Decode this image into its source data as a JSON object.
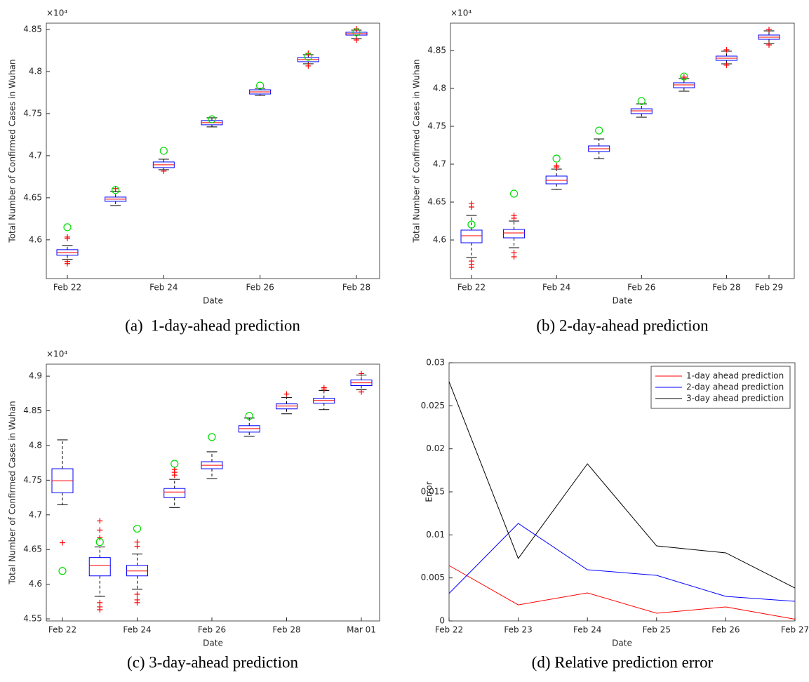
{
  "chart_data": [
    {
      "type": "box",
      "caption": "(a)  1-day-ahead prediction",
      "xlabel": "Date",
      "ylabel": "Total Number of Confirmed Cases in Wuhan",
      "y_multiplier": "×10⁴",
      "categories": [
        "Feb 22",
        null,
        "Feb 24",
        null,
        "Feb 26",
        null,
        "Feb 28"
      ],
      "boxes": [
        {
          "whislo": 4.5767,
          "q1": 4.5817,
          "med": 4.585,
          "q3": 4.5883,
          "whishi": 4.5933,
          "fliers": [
            4.6017,
            4.6033,
            4.5742,
            4.5717
          ]
        },
        {
          "whislo": 4.6408,
          "q1": 4.6458,
          "med": 4.6483,
          "q3": 4.6508,
          "whishi": 4.6575,
          "fliers": [
            4.6608
          ]
        },
        {
          "whislo": 4.6833,
          "q1": 4.6858,
          "med": 4.6892,
          "q3": 4.6925,
          "whishi": 4.6958,
          "fliers": [
            4.6817
          ]
        },
        {
          "whislo": 4.7342,
          "q1": 4.7367,
          "med": 4.7392,
          "q3": 4.7417,
          "whishi": 4.745,
          "fliers": []
        },
        {
          "whislo": 4.7717,
          "q1": 4.7733,
          "med": 4.7758,
          "q3": 4.7783,
          "whishi": 4.78,
          "fliers": []
        },
        {
          "whislo": 4.8092,
          "q1": 4.8117,
          "med": 4.8142,
          "q3": 4.8167,
          "whishi": 4.82,
          "fliers": [
            4.8217,
            4.8067
          ]
        },
        {
          "whislo": 4.8392,
          "q1": 4.8433,
          "med": 4.845,
          "q3": 4.8467,
          "whishi": 4.8492,
          "fliers": [
            4.8508,
            4.8375
          ]
        }
      ],
      "actual": [
        4.615,
        4.6592,
        4.7058,
        4.7433,
        4.7833,
        4.8175,
        4.8467
      ],
      "colors": {
        "box": "#0000ff",
        "median": "#ff0000",
        "whisker": "#000000",
        "flier": "#ff0000",
        "actual": "#00dd00"
      },
      "ylim": [
        4.554,
        4.8575
      ],
      "yticks": [
        4.6,
        4.65,
        4.7,
        4.75,
        4.8,
        4.85
      ]
    },
    {
      "type": "box",
      "caption": "(b) 2-day-ahead prediction",
      "xlabel": "Date",
      "ylabel": "Total Number of Confirmed Cases in Wuhan",
      "y_multiplier": "×10⁴",
      "categories": [
        "Feb 22",
        null,
        "Feb 24",
        null,
        "Feb 26",
        null,
        "Feb 28",
        "Feb 29"
      ],
      "boxes": [
        {
          "whislo": 4.5769,
          "q1": 4.5963,
          "med": 4.6056,
          "q3": 4.613,
          "whishi": 4.6324,
          "fliers": [
            4.6481,
            4.6435,
            4.5722,
            4.5676,
            4.5639
          ]
        },
        {
          "whislo": 4.5898,
          "q1": 4.6028,
          "med": 4.6093,
          "q3": 4.6139,
          "whishi": 4.625,
          "fliers": [
            4.6324,
            4.6287,
            4.5833,
            4.5778
          ]
        },
        {
          "whislo": 4.6667,
          "q1": 4.6741,
          "med": 4.6787,
          "q3": 4.6843,
          "whishi": 4.6935,
          "fliers": [
            4.6981,
            4.6963
          ]
        },
        {
          "whislo": 4.7074,
          "q1": 4.7167,
          "med": 4.7204,
          "q3": 4.7241,
          "whishi": 4.7333,
          "fliers": []
        },
        {
          "whislo": 4.762,
          "q1": 4.7667,
          "med": 4.7704,
          "q3": 4.7731,
          "whishi": 4.7796,
          "fliers": []
        },
        {
          "whislo": 4.7963,
          "q1": 4.8009,
          "med": 4.8046,
          "q3": 4.8074,
          "whishi": 4.813,
          "fliers": [
            4.8148
          ]
        },
        {
          "whislo": 4.8324,
          "q1": 4.837,
          "med": 4.8398,
          "q3": 4.8426,
          "whishi": 4.8491,
          "fliers": [
            4.8509,
            4.8306
          ]
        },
        {
          "whislo": 4.8593,
          "q1": 4.8648,
          "med": 4.8676,
          "q3": 4.8704,
          "whishi": 4.8759,
          "fliers": [
            4.8778,
            4.8574
          ]
        }
      ],
      "actual": [
        4.6204,
        4.6611,
        4.7074,
        4.7444,
        4.7833,
        4.8157,
        null,
        null
      ],
      "colors": {
        "box": "#0000ff",
        "median": "#ff0000",
        "whisker": "#000000",
        "flier": "#ff0000",
        "actual": "#00dd00"
      },
      "ylim": [
        4.5491,
        4.8861
      ],
      "yticks": [
        4.6,
        4.65,
        4.7,
        4.75,
        4.8,
        4.85
      ]
    },
    {
      "type": "box",
      "caption": "(c) 3-day-ahead prediction",
      "xlabel": "Date",
      "ylabel": "Total Number of Confirmed Cases in Wuhan",
      "y_multiplier": "×10⁴",
      "categories": [
        "Feb 22",
        null,
        "Feb 24",
        null,
        "Feb 26",
        null,
        "Feb 28",
        null,
        "Mar 01"
      ],
      "boxes": [
        {
          "whislo": 4.7146,
          "q1": 4.7319,
          "med": 4.7492,
          "q3": 4.7665,
          "whishi": 4.8081,
          "fliers": [
            4.6598
          ]
        },
        {
          "whislo": 4.5825,
          "q1": 4.612,
          "med": 4.6272,
          "q3": 4.6384,
          "whishi": 4.6537,
          "fliers": [
            4.6913,
            4.678,
            4.6669,
            4.5734,
            4.5673,
            4.5632
          ]
        },
        {
          "whislo": 4.5927,
          "q1": 4.612,
          "med": 4.6191,
          "q3": 4.6272,
          "whishi": 4.6435,
          "fliers": [
            4.6608,
            4.6547,
            4.5856,
            4.5774,
            4.5734
          ]
        },
        {
          "whislo": 4.7106,
          "q1": 4.7248,
          "med": 4.7329,
          "q3": 4.738,
          "whishi": 4.7512,
          "fliers": [
            4.7654,
            4.7614,
            4.7573
          ]
        },
        {
          "whislo": 4.7522,
          "q1": 4.7665,
          "med": 4.7715,
          "q3": 4.7766,
          "whishi": 4.7909,
          "fliers": []
        },
        {
          "whislo": 4.8132,
          "q1": 4.8193,
          "med": 4.8244,
          "q3": 4.8285,
          "whishi": 4.8396,
          "fliers": []
        },
        {
          "whislo": 4.8457,
          "q1": 4.8528,
          "med": 4.8569,
          "q3": 4.86,
          "whishi": 4.8691,
          "fliers": [
            4.8742
          ]
        },
        {
          "whislo": 4.8518,
          "q1": 4.861,
          "med": 4.865,
          "q3": 4.8681,
          "whishi": 4.8793,
          "fliers": [
            4.8833,
            4.8813
          ]
        },
        {
          "whislo": 4.8803,
          "q1": 4.8864,
          "med": 4.8904,
          "q3": 4.8945,
          "whishi": 4.9016,
          "fliers": [
            4.9037,
            4.8772
          ]
        }
      ],
      "actual": [
        4.6191,
        4.6608,
        4.6801,
        4.7736,
        4.8122,
        4.8427,
        null,
        null,
        null
      ],
      "colors": {
        "box": "#0000ff",
        "median": "#ff0000",
        "whisker": "#000000",
        "flier": "#ff0000",
        "actual": "#00dd00"
      },
      "ylim": [
        4.547,
        4.9173
      ],
      "yticks": [
        4.55,
        4.6,
        4.65,
        4.7,
        4.75,
        4.8,
        4.85,
        4.9
      ]
    },
    {
      "type": "line",
      "caption": "(d) Relative prediction error",
      "xlabel": "Date",
      "ylabel": "Error",
      "categories": [
        "Feb 22",
        "Feb 23",
        "Feb 24",
        "Feb 25",
        "Feb 26",
        "Feb 27"
      ],
      "series": [
        {
          "name": "1-day ahead prediction",
          "color": "#ff0000",
          "values": [
            0.00644,
            0.00187,
            0.00326,
            0.0009,
            0.00163,
            0.0002
          ]
        },
        {
          "name": "2-day ahead prediction",
          "color": "#0000ff",
          "values": [
            0.0032,
            0.01133,
            0.00595,
            0.0053,
            0.00285,
            0.00228
          ]
        },
        {
          "name": "3-day ahead prediction",
          "color": "#000000",
          "values": [
            0.0278,
            0.00726,
            0.01826,
            0.00872,
            0.00791,
            0.00383
          ]
        }
      ],
      "legend": "upper right",
      "ylim": [
        0,
        0.03
      ],
      "yticks": [
        0,
        0.005,
        0.01,
        0.015,
        0.02,
        0.025,
        0.03
      ]
    }
  ]
}
